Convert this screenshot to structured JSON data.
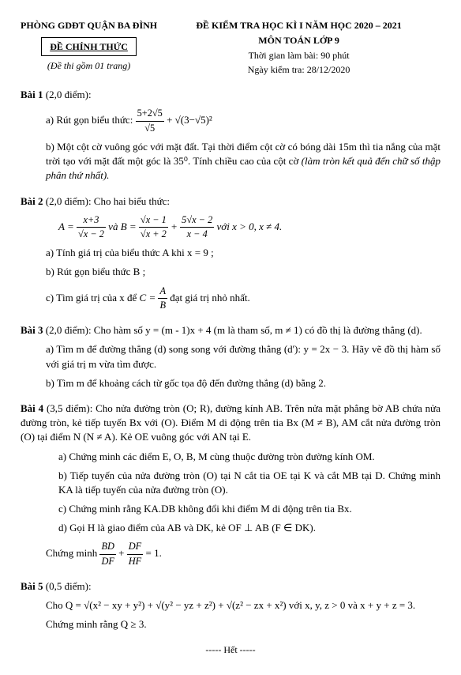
{
  "header": {
    "org": "PHÒNG GDĐT QUẬN BA ĐÌNH",
    "official": "ĐỀ CHÍNH THỨC",
    "note": "(Đề thi gồm 01 trang)",
    "exam_title": "ĐỀ KIỂM TRA HỌC KÌ I NĂM HỌC 2020 – 2021",
    "subject": "MÔN TOÁN LỚP 9",
    "time": "Thời gian làm bài: 90 phút",
    "date": "Ngày kiểm tra: 28/12/2020"
  },
  "bai1": {
    "title": "Bài 1",
    "points": "(2,0 điểm):",
    "a_prefix": "a) Rút gọn biểu thức: ",
    "a_frac_num": "5+2√5",
    "a_frac_den": "√5",
    "a_rest": " + √(3−√5)²",
    "b": "b) Một cột cờ vuông góc với mặt đất. Tại thời điểm cột cờ có bóng dài 15m thì tia nắng của mặt trời tạo với mặt đất một góc là 35⁰. Tính chiều cao của cột cờ ",
    "b_italic": "(làm tròn kết quả đến chữ số thập phân thứ nhất)."
  },
  "bai2": {
    "title": "Bài 2",
    "points": "(2,0 điểm): Cho hai biểu thức:",
    "A_eq": "A = ",
    "A_num": "x+3",
    "A_den": "√x − 2",
    "and": " và ",
    "B_eq": "B = ",
    "B1_num": "√x − 1",
    "B1_den": "√x + 2",
    "plus": " + ",
    "B2_num": "5√x − 2",
    "B2_den": "x − 4",
    "cond": "   với x > 0, x ≠ 4.",
    "a": "a) Tính giá trị của biểu thức A khi  x = 9 ;",
    "b": "b) Rút gọn biểu thức B ;",
    "c_prefix": "c) Tìm giá trị của x để ",
    "c_C": "C = ",
    "c_num": "A",
    "c_den": "B",
    "c_suffix": " đạt giá trị nhỏ nhất."
  },
  "bai3": {
    "title": "Bài 3",
    "points": "(2,0 điểm):  Cho hàm số y = (m - 1)x + 4 (m là tham số, m ≠ 1) có đồ thị là đường thẳng (d).",
    "a": "a)   Tìm m để đường thẳng (d) song song với đường thẳng (d'): y = 2x − 3. Hãy vẽ đồ thị hàm số với giá trị m vừa tìm được.",
    "b": "b)   Tìm m để khoảng cách từ gốc tọa độ đến đường thẳng (d) bằng 2."
  },
  "bai4": {
    "title": "Bài 4",
    "points": "(3,5 điểm): Cho nửa đường tròn (O; R), đường kính AB. Trên nửa mặt phẳng bờ AB chứa nửa đường tròn, kẻ tiếp tuyến Bx với (O). Điểm M di động trên tia Bx (M ≠ B), AM cắt nửa đường tròn (O) tại điểm N (N ≠ A). Kẻ OE vuông góc với AN tại E.",
    "a": "a) Chứng minh các điểm E, O, B, M cùng thuộc đường tròn đường kính OM.",
    "b": "b) Tiếp tuyến của nửa đường tròn (O) tại N cắt tia OE tại K và cắt MB tại D. Chứng minh KA là tiếp tuyến của nửa đường tròn (O).",
    "c": "c) Chứng minh rằng KA.DB không đổi khi điểm M di động trên tia Bx.",
    "d": "d) Gọi H là giao điểm của AB và DK, kẻ OF ⊥ AB (F ∈ DK).",
    "proof_prefix": "Chứng minh ",
    "f1_num": "BD",
    "f1_den": "DF",
    "plus": " + ",
    "f2_num": "DF",
    "f2_den": "HF",
    "eq": " = 1."
  },
  "bai5": {
    "title": "Bài 5",
    "points": "(0,5 điểm):",
    "q_prefix": "Cho Q = ",
    "q_expr": "√(x² − xy + y²) + √(y² − yz + z²) + √(z² − zx + x²)",
    "q_cond": "  với x, y, z > 0 và x + y + z = 3.",
    "proof": "Chứng minh rằng Q ≥ 3."
  },
  "end": "----- Hết -----"
}
